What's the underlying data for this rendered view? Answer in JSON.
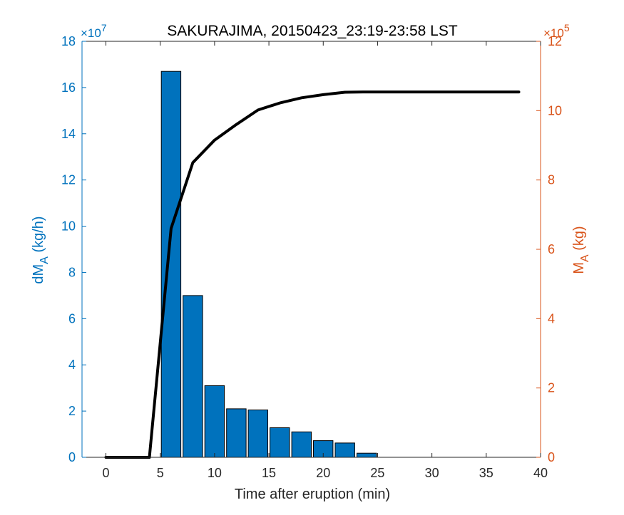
{
  "chart_data": {
    "type": "bar",
    "title": "SAKURAJIMA, 20150423_23:19-23:58 LST",
    "xlabel": "Time after eruption (min)",
    "x_ticks": [
      "0",
      "5",
      "10",
      "15",
      "20",
      "25",
      "30",
      "35",
      "40"
    ],
    "xlim": [
      -2.2,
      40
    ],
    "left_axis": {
      "label_main": "dM",
      "label_sub": "A",
      "label_unit": "(kg/h)",
      "exponent_base": "×10",
      "exponent_power": "7",
      "ylim": [
        0,
        18
      ],
      "ticks": [
        "0",
        "2",
        "4",
        "6",
        "8",
        "10",
        "12",
        "14",
        "16",
        "18"
      ],
      "color": "#0072BD"
    },
    "right_axis": {
      "label_main": "M",
      "label_sub": "A",
      "label_unit": "(kg)",
      "exponent_base": "×10",
      "exponent_power": "5",
      "ylim": [
        0,
        12
      ],
      "ticks": [
        "0",
        "2",
        "4",
        "6",
        "8",
        "10",
        "12"
      ],
      "color": "#D95319"
    },
    "bars": {
      "x": [
        6,
        8,
        10,
        12,
        14,
        16,
        18,
        20,
        22,
        24
      ],
      "values": [
        16.7,
        7.0,
        3.1,
        2.1,
        2.05,
        1.28,
        1.1,
        0.72,
        0.62,
        0.18
      ],
      "units": "×10^7 kg/h",
      "color": "#0072BD"
    },
    "line": {
      "x": [
        0,
        4,
        5,
        6,
        8,
        10,
        12,
        14,
        16,
        18,
        20,
        22,
        24,
        26,
        28,
        30,
        32,
        34,
        36,
        38
      ],
      "values": [
        0,
        0,
        3.3,
        6.6,
        8.5,
        9.15,
        9.6,
        10.02,
        10.22,
        10.37,
        10.46,
        10.53,
        10.54,
        10.54,
        10.54,
        10.54,
        10.54,
        10.54,
        10.54,
        10.54
      ],
      "units": "×10^5 kg",
      "color": "#000000"
    },
    "grid": false
  }
}
